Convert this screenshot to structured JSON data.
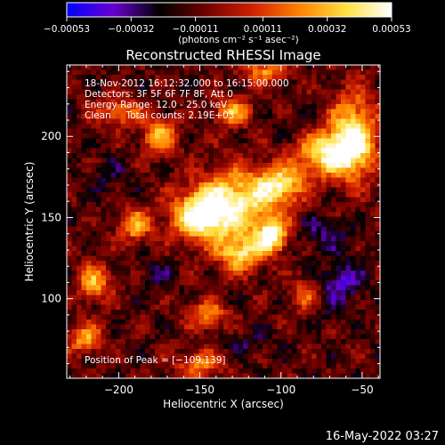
{
  "chart_data": {
    "type": "heatmap",
    "title": "Reconstructed RHESSI Image",
    "xlabel": "Heliocentric X (arcsec)",
    "ylabel": "Heliocentric Y (arcsec)",
    "xlim": [
      -232,
      -39
    ],
    "ylim": [
      51,
      244
    ],
    "x_ticks": [
      -200,
      -150,
      -100,
      -50
    ],
    "x_tick_labels": [
      "−200",
      "−150",
      "−100",
      "−50"
    ],
    "y_ticks": [
      100,
      150,
      200
    ],
    "y_tick_labels": [
      "100",
      "150",
      "200"
    ],
    "colorbar": {
      "range": [
        -0.00053,
        0.00053
      ],
      "ticks": [
        -0.00053,
        -0.00032,
        -0.00011,
        0.00011,
        0.00032,
        0.00053
      ],
      "tick_labels": [
        "−0.00053",
        "−0.00032",
        "−0.00011",
        "0.00011",
        "0.00032",
        "0.00053"
      ],
      "unit_label": "(photons cm⁻² s⁻¹ asec⁻²)",
      "colormap": [
        "#0000ff",
        "#6a00d0",
        "#000000",
        "#700000",
        "#d02000",
        "#ff8000",
        "#ffe040",
        "#ffffff"
      ]
    },
    "annotations": [
      "18-Nov-2012 16:12:32.000 to 16:15:00.000",
      "Detectors: 3F 5F 6F 7F 8F, Att 0",
      "Energy Range: 12.0 - 25.0 keV",
      "Clean     Total counts: 2.19E+03"
    ],
    "peak_label": "Position of Peak = [−109,139]",
    "peak_position": [
      -109,
      139
    ],
    "hot_regions": [
      {
        "x": -128,
        "y": 160,
        "sx": 18,
        "sy": 14,
        "v": 0.00045
      },
      {
        "x": -105,
        "y": 139,
        "sx": 7,
        "sy": 7,
        "v": 0.0005
      },
      {
        "x": -150,
        "y": 150,
        "sx": 12,
        "sy": 10,
        "v": 0.00048
      },
      {
        "x": -125,
        "y": 128,
        "sx": 10,
        "sy": 8,
        "v": 0.0004
      },
      {
        "x": -72,
        "y": 190,
        "sx": 14,
        "sy": 10,
        "v": 0.00042
      },
      {
        "x": -55,
        "y": 200,
        "sx": 10,
        "sy": 18,
        "v": 0.00044
      },
      {
        "x": -100,
        "y": 170,
        "sx": 10,
        "sy": 8,
        "v": 0.00035
      },
      {
        "x": -190,
        "y": 145,
        "sx": 7,
        "sy": 7,
        "v": 0.0003
      },
      {
        "x": -215,
        "y": 110,
        "sx": 7,
        "sy": 8,
        "v": 0.0003
      },
      {
        "x": -220,
        "y": 75,
        "sx": 8,
        "sy": 6,
        "v": 0.00028
      },
      {
        "x": -145,
        "y": 90,
        "sx": 8,
        "sy": 6,
        "v": 0.00025
      },
      {
        "x": -150,
        "y": 60,
        "sx": 10,
        "sy": 6,
        "v": 0.00022
      },
      {
        "x": -175,
        "y": 200,
        "sx": 8,
        "sy": 8,
        "v": 0.00028
      },
      {
        "x": -110,
        "y": 240,
        "sx": 10,
        "sy": 5,
        "v": 0.00025
      },
      {
        "x": -130,
        "y": 215,
        "sx": 8,
        "sy": 6,
        "v": 0.0003
      },
      {
        "x": -200,
        "y": 215,
        "sx": 10,
        "sy": 6,
        "v": 0.00022
      },
      {
        "x": -85,
        "y": 100,
        "sx": 7,
        "sy": 8,
        "v": 0.00025
      }
    ],
    "cold_regions": [
      {
        "x": -62,
        "y": 110,
        "sx": 9,
        "sy": 8,
        "v": -0.0004
      },
      {
        "x": -80,
        "y": 95,
        "sx": 9,
        "sy": 7,
        "v": -0.0003
      },
      {
        "x": -175,
        "y": 115,
        "sx": 8,
        "sy": 6,
        "v": -0.00025
      },
      {
        "x": -120,
        "y": 72,
        "sx": 9,
        "sy": 6,
        "v": -0.00025
      },
      {
        "x": -75,
        "y": 140,
        "sx": 12,
        "sy": 8,
        "v": -0.00028
      },
      {
        "x": -90,
        "y": 205,
        "sx": 12,
        "sy": 6,
        "v": -0.00022
      },
      {
        "x": -205,
        "y": 175,
        "sx": 10,
        "sy": 8,
        "v": -0.00022
      }
    ]
  },
  "footer": {
    "timestamp": "16-May-2022 03:27"
  }
}
